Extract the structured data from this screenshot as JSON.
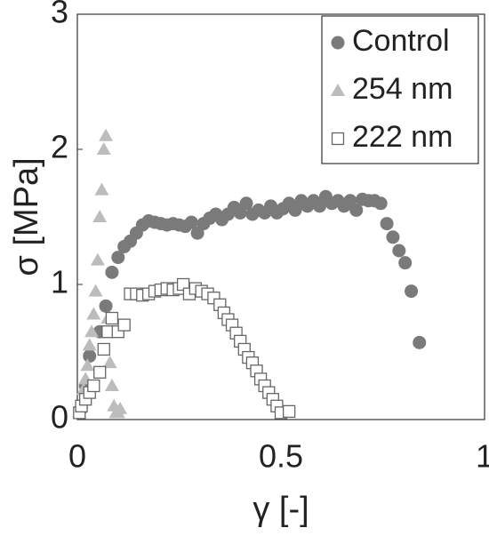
{
  "chart_data": {
    "type": "scatter",
    "xlabel": "γ [-]",
    "ylabel": "σ [MPa]",
    "xlim": [
      0,
      1
    ],
    "ylim": [
      0,
      3
    ],
    "xticks": [
      0,
      0.5,
      1
    ],
    "yticks": [
      0,
      1,
      2,
      3
    ],
    "legend": "upper right",
    "series": [
      {
        "name": "Control",
        "color": "#7a7a7a",
        "marker": "circle",
        "x": [
          0.007,
          0.02,
          0.03,
          0.055,
          0.07,
          0.085,
          0.1,
          0.115,
          0.13,
          0.145,
          0.16,
          0.175,
          0.19,
          0.205,
          0.22,
          0.235,
          0.25,
          0.265,
          0.28,
          0.295,
          0.31,
          0.325,
          0.34,
          0.355,
          0.37,
          0.385,
          0.4,
          0.415,
          0.43,
          0.445,
          0.46,
          0.475,
          0.49,
          0.505,
          0.52,
          0.535,
          0.55,
          0.565,
          0.58,
          0.595,
          0.61,
          0.625,
          0.64,
          0.655,
          0.67,
          0.685,
          0.7,
          0.715,
          0.73,
          0.745,
          0.76,
          0.775,
          0.79,
          0.805,
          0.82,
          0.84
        ],
        "values": [
          0.07,
          0.25,
          0.47,
          0.65,
          0.84,
          1.09,
          1.2,
          1.28,
          1.32,
          1.38,
          1.44,
          1.47,
          1.46,
          1.45,
          1.44,
          1.45,
          1.44,
          1.43,
          1.46,
          1.38,
          1.45,
          1.49,
          1.52,
          1.48,
          1.52,
          1.57,
          1.53,
          1.6,
          1.52,
          1.55,
          1.53,
          1.58,
          1.53,
          1.56,
          1.6,
          1.55,
          1.62,
          1.58,
          1.62,
          1.58,
          1.65,
          1.6,
          1.62,
          1.58,
          1.62,
          1.55,
          1.63,
          1.62,
          1.62,
          1.6,
          1.45,
          1.35,
          1.25,
          1.16,
          0.95,
          0.57
        ]
      },
      {
        "name": "254 nm",
        "color": "#bcbcbc",
        "marker": "triangle",
        "x": [
          0.005,
          0.01,
          0.015,
          0.02,
          0.025,
          0.03,
          0.035,
          0.04,
          0.045,
          0.05,
          0.055,
          0.06,
          0.065,
          0.07,
          0.075,
          0.08,
          0.085,
          0.09,
          0.095,
          0.1,
          0.105
        ],
        "values": [
          0.05,
          0.12,
          0.22,
          0.3,
          0.4,
          0.55,
          0.65,
          0.78,
          0.95,
          1.18,
          1.5,
          1.7,
          2.0,
          2.1,
          0.75,
          0.42,
          0.25,
          0.1,
          0.05,
          0.05,
          0.08
        ]
      },
      {
        "name": "222 nm",
        "color": "#666666",
        "marker": "square",
        "x": [
          0.005,
          0.01,
          0.02,
          0.03,
          0.04,
          0.055,
          0.065,
          0.075,
          0.085,
          0.1,
          0.115,
          0.13,
          0.145,
          0.16,
          0.175,
          0.19,
          0.205,
          0.22,
          0.235,
          0.25,
          0.26,
          0.275,
          0.29,
          0.305,
          0.32,
          0.335,
          0.35,
          0.36,
          0.37,
          0.38,
          0.39,
          0.4,
          0.41,
          0.42,
          0.43,
          0.44,
          0.45,
          0.46,
          0.47,
          0.48,
          0.49,
          0.5,
          0.52
        ],
        "values": [
          0.05,
          0.1,
          0.15,
          0.2,
          0.25,
          0.35,
          0.52,
          0.65,
          0.75,
          0.65,
          0.7,
          0.93,
          0.93,
          0.92,
          0.93,
          0.95,
          0.96,
          0.97,
          0.96,
          0.97,
          1.0,
          0.93,
          0.97,
          0.95,
          0.93,
          0.9,
          0.85,
          0.79,
          0.74,
          0.7,
          0.64,
          0.58,
          0.52,
          0.46,
          0.42,
          0.36,
          0.3,
          0.25,
          0.2,
          0.15,
          0.1,
          0.05,
          0.06
        ]
      }
    ]
  }
}
